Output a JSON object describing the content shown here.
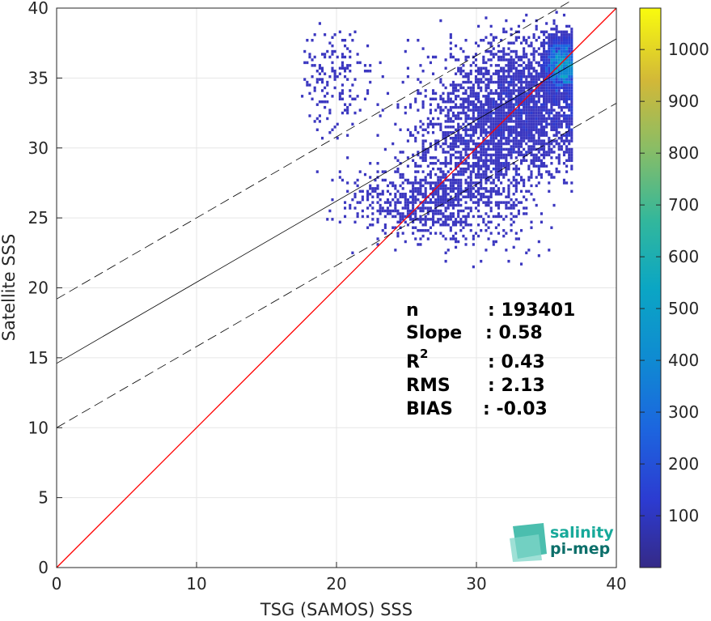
{
  "chart_data": {
    "type": "heatmap",
    "xlabel": "TSG (SAMOS) SSS",
    "ylabel": "Satellite SSS",
    "xlim": [
      0,
      40
    ],
    "ylim": [
      0,
      40
    ],
    "xticks": [
      "0",
      "10",
      "20",
      "30",
      "40"
    ],
    "yticks": [
      "0",
      "5",
      "10",
      "15",
      "20",
      "25",
      "30",
      "35",
      "40"
    ],
    "grid": true,
    "colorbar": {
      "range": [
        0,
        1080
      ],
      "ticks": [
        "100",
        "200",
        "300",
        "400",
        "500",
        "600",
        "700",
        "800",
        "900",
        "1000"
      ],
      "colormap": "parula"
    },
    "lines": [
      {
        "kind": "identity",
        "color": "#ff0000",
        "x": [
          0,
          40
        ],
        "y": [
          0,
          40
        ]
      },
      {
        "kind": "regression",
        "color": "#000000",
        "slope": 0.58,
        "intercept": 14.6,
        "style": "solid"
      },
      {
        "kind": "upper-bound",
        "color": "#000000",
        "slope": 0.58,
        "intercept": 19.2,
        "style": "dashed"
      },
      {
        "kind": "lower-bound",
        "color": "#000000",
        "slope": 0.58,
        "intercept": 10.0,
        "style": "dashed"
      }
    ],
    "density_clusters": [
      {
        "x": 33.5,
        "y": 33.0,
        "sx": 2.5,
        "sy": 2.2,
        "weight": 1.0
      },
      {
        "x": 36.0,
        "y": 36.0,
        "sx": 0.6,
        "sy": 1.0,
        "weight": 0.9
      },
      {
        "x": 30.0,
        "y": 29.5,
        "sx": 2.5,
        "sy": 3.0,
        "weight": 0.6
      },
      {
        "x": 26.0,
        "y": 26.0,
        "sx": 2.5,
        "sy": 1.2,
        "weight": 0.25
      },
      {
        "x": 20.0,
        "y": 35.0,
        "sx": 1.3,
        "sy": 1.8,
        "weight": 0.08
      }
    ],
    "stats": [
      {
        "label": "n",
        "value": ": 193401"
      },
      {
        "label": "Slope",
        "value": ": 0.58"
      },
      {
        "label": "R",
        "sup": "2",
        "value": ": 0.43"
      },
      {
        "label": "RMS",
        "value": ": 2.13"
      },
      {
        "label": "BIAS",
        "value": ": -0.03"
      }
    ]
  },
  "logo": {
    "line1": "salinity",
    "line2": "pi-mep"
  },
  "colors": {
    "identity": "#ff0000",
    "grid": "#e6e6e6",
    "axis": "#262626",
    "logo_teal": "#17a99a"
  }
}
